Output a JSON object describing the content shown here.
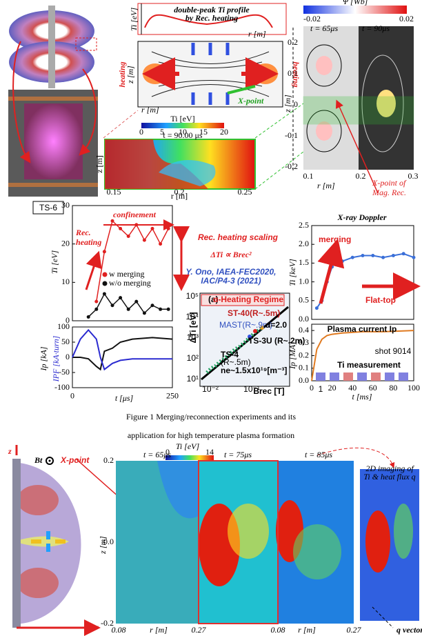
{
  "fig_top": {
    "tm": {
      "ti": "Ti [eV]",
      "note1": "double-peak Ti profile",
      "note2": "by Rec. heating",
      "r1": "r [m]",
      "z": "z [m]",
      "heat_l": "heating",
      "heat_r": "heating",
      "xpoint": "X-point",
      "r2": "r [m]"
    },
    "timap": {
      "cb_label": "Ti [eV]",
      "cb_ticks": [
        "0",
        "5",
        "10",
        "15",
        "20"
      ],
      "time": "t = 90.00 μs",
      "xticks": [
        "0.15",
        "0.2",
        "0.25"
      ],
      "xlabel": "r [m]",
      "ylabel": "z [m]"
    },
    "psimap": {
      "cb_label": "Ψ [Wb]",
      "cb_min": "-0.02",
      "cb_max": "0.02",
      "t1": "t = 65μs",
      "t2": "t = 90μs",
      "yticks": [
        "0.2",
        "0.1",
        "0",
        "-0.1",
        "-0.2"
      ],
      "ylabel": "z [m]",
      "xticks": [
        "0.1",
        "0.2",
        "0.3"
      ],
      "xlabel": "r [m]",
      "note1": "X-point of",
      "note2": "Mag. Rec."
    }
  },
  "ts6": "TS-6",
  "charts": {
    "ti": {
      "type": "line",
      "xlim": [
        0,
        250
      ],
      "ylim": [
        0,
        30
      ],
      "yticks": [
        0,
        10,
        20,
        30
      ],
      "ylabel": "Ti [eV]",
      "confinement": "confinement",
      "rec1": "Rec.",
      "rec2": "heating",
      "x": [
        0,
        20,
        40,
        60,
        80,
        100,
        120,
        140,
        160,
        180,
        200,
        220,
        240
      ],
      "series": [
        {
          "name": "w merging",
          "color": "#e02020",
          "values": [
            null,
            null,
            null,
            5,
            18,
            26,
            24,
            22,
            25,
            21,
            24,
            20,
            24
          ]
        },
        {
          "name": "w/o merging",
          "color": "#111111",
          "values": [
            null,
            null,
            1,
            3,
            7,
            4,
            6,
            3,
            5,
            2,
            4,
            3,
            3
          ]
        }
      ]
    },
    "ip": {
      "type": "line",
      "xlim": [
        0,
        250
      ],
      "ylim": [
        -100,
        100
      ],
      "yticks": [
        -100,
        -50,
        0,
        50,
        100
      ],
      "xticks": [
        0,
        250
      ],
      "ylabel1": "Ip [kA]",
      "ylabel2": "IPF [kA·turn]",
      "xlabel": "t [μs]",
      "x": [
        0,
        20,
        40,
        60,
        70,
        80,
        100,
        120,
        150,
        200,
        250
      ],
      "series": [
        {
          "name": "Ip",
          "color": "#111111",
          "values": [
            0,
            0,
            -5,
            -30,
            -40,
            20,
            30,
            50,
            60,
            65,
            60
          ]
        },
        {
          "name": "IPF",
          "color": "#2a2ad0",
          "values": [
            0,
            60,
            90,
            60,
            0,
            -40,
            -20,
            -10,
            -5,
            -5,
            -5
          ]
        }
      ]
    },
    "xti": {
      "type": "line",
      "xlim": [
        0,
        100
      ],
      "ylim": [
        0,
        2.5
      ],
      "yticks": [
        {
          "value": 0,
          "label": "0.0"
        },
        0.5,
        {
          "value": 1,
          "label": "1.0"
        },
        1.5,
        {
          "value": 2,
          "label": "2.0"
        },
        2.5
      ],
      "title": "X-ray Doppler",
      "ylabel": "Ti [keV]",
      "merging": "merging",
      "flattop": "Flat-top",
      "x": [
        5,
        10,
        15,
        20,
        25,
        30,
        40,
        50,
        60,
        70,
        80,
        90,
        100
      ],
      "series": [
        {
          "name": "Ti",
          "color": "#3a6fd8",
          "values": [
            0.3,
            0.5,
            1.0,
            1.4,
            1.6,
            1.55,
            1.65,
            1.7,
            1.7,
            1.65,
            1.7,
            1.75,
            1.65
          ]
        }
      ]
    },
    "xip": {
      "type": "line",
      "xlim": [
        0,
        100
      ],
      "ylim": [
        0,
        0.45
      ],
      "yticks": [
        {
          "value": 0,
          "label": "0.0"
        },
        0.1,
        0.2,
        0.3,
        0.4
      ],
      "xticks": [
        0,
        20,
        40,
        60,
        80,
        100
      ],
      "ylabel": "Ip [MA]",
      "label": "Plasma current Ip",
      "shot": "shot 9014",
      "meas": "Ti measurement",
      "xlabel": "t [ms]",
      "x": [
        0,
        5,
        10,
        15,
        20,
        30,
        50,
        70,
        100
      ],
      "series": [
        {
          "name": "Ip",
          "color": "#e07a20",
          "values": [
            0,
            0.25,
            0.33,
            0.36,
            0.37,
            0.38,
            0.39,
            0.39,
            0.4
          ]
        }
      ]
    }
  },
  "scaling": {
    "title": "Rec. heating scaling",
    "law": "ΔTi ∝ Brec²",
    "ref1": "Y. Ono, IAEA-FEC2020,",
    "ref2": "IAC/P4-3 (2021)",
    "panel": "(a)",
    "regime": "α-Heating Regime",
    "ylabel": "ΔTi [eV]",
    "xlabel": "Brec [T]",
    "yticks": [
      "10⁵",
      "10⁴",
      "10³",
      "10²",
      "10¹"
    ],
    "xticks": [
      "10⁻²",
      "10⁻¹",
      "1"
    ],
    "labels": [
      "ST-40(R~.5m)",
      "MAST(R~.9m)",
      "TS-3U (R~.2m)",
      "TS-4",
      "(R~.5m)",
      "ne~1.5x10¹⁹[m⁻³]"
    ],
    "alpha": "α=2.0"
  },
  "caption": [
    "Figure 1 Merging/reconnection experiments and its",
    "application for high temperature plasma formation"
  ],
  "fig_bottom": {
    "z": "z",
    "bt": "Bt",
    "xpoint": "X-point",
    "r": "r",
    "cb_label": "Ti [eV]",
    "cb_min": "0",
    "cb_max": "14",
    "times": [
      "t = 65μs",
      "t = 75μs",
      "t = 85μs"
    ],
    "yticks": [
      "0.2",
      "0.0",
      "-0.2"
    ],
    "ylabel": "z [m]",
    "xticks": [
      "0.08",
      "r [m]",
      "0.27",
      "0.08",
      "r [m]",
      "0.27"
    ],
    "img1": "2D imaging of",
    "img2": "Ti & heat flux q",
    "qvec": "q vector"
  }
}
